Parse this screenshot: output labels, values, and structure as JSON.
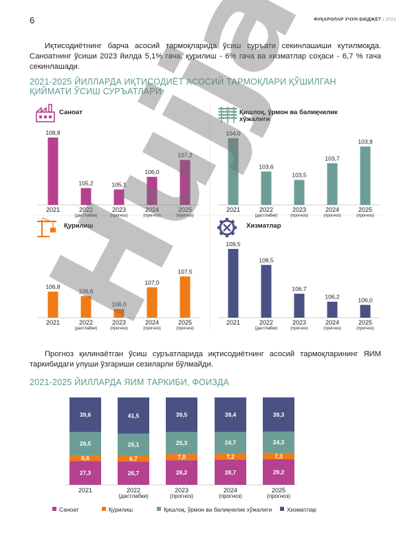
{
  "header": {
    "page_number": "6",
    "title": "ФУҚАРОЛАР УЧУН БЮДЖЕТ",
    "year": "| 2021"
  },
  "paragraph1": "Иқтисодиётнинг барча асосий тармоқларида ўсиш суръати секинлашиши кутилмоқда. Саноатнинг ўсиши 2023 йилда 5,1% гача, қурилиш - 6% гача ва хизматлар соҳаси - 6,7 % гача секинлашади.",
  "section1_title": "2021-2025 ЙИЛЛАРДА ИҚТИСОДИЁТ АСОСИЙ ТАРМОҚЛАРИ ҚЎШИЛГАН ҚИЙМАТИ ЎСИШ СУРЪАТЛАРИ",
  "paragraph2": "Прогноз қилинаётган ўсиш суръатларида иқтисодиётнинг асосий тармоқларининг ЯИМ таркибидаги улуши ўзгариши сезиларли бўлмайди.",
  "section2_title": "2021-2025 ЙИЛЛАРДА ЯИМ ТАРКИБИ, ФОИЗДА",
  "watermark": {
    "text": "Hujjat",
    "accent": "24"
  },
  "colors": {
    "industry": "#b5418f",
    "agriculture": "#6d9e95",
    "construction": "#f07b17",
    "services": "#4a5283",
    "title": "#5a9a8e"
  },
  "chart_data": [
    {
      "type": "bar",
      "title": "Саноат",
      "icon": "factory-icon",
      "categories": [
        "2021",
        "2022",
        "2023",
        "2024",
        "2025"
      ],
      "category_notes": [
        "",
        "(дастлабки)",
        "(прогноз)",
        "(прогноз)",
        "(прогноз)"
      ],
      "values": [
        108.8,
        105.2,
        105.1,
        106.0,
        107.2
      ],
      "labels": [
        "108,8",
        "105,2",
        "105,1",
        "106,0",
        "107,2"
      ],
      "color": "#b5418f"
    },
    {
      "type": "bar",
      "title": "Қишлоқ, ўрмон ва балиқчилик хўжалиги",
      "icon": "wheat-icon",
      "categories": [
        "2021",
        "2022",
        "2023",
        "2024",
        "2025"
      ],
      "category_notes": [
        "",
        "(дастлабки)",
        "(прогноз)",
        "(прогноз)",
        "(прогноз)"
      ],
      "values": [
        104.0,
        103.6,
        103.5,
        103.7,
        103.9
      ],
      "labels": [
        "104,0",
        "103,6",
        "103,5",
        "103,7",
        "103,9"
      ],
      "color": "#6d9e95"
    },
    {
      "type": "bar",
      "title": "Қурилиш",
      "icon": "crane-icon",
      "categories": [
        "2021",
        "2022",
        "2023",
        "2024",
        "2025"
      ],
      "category_notes": [
        "",
        "(дастлабки)",
        "(прогноз)",
        "(прогноз)",
        "(прогноз)"
      ],
      "values": [
        106.8,
        106.6,
        106.0,
        107.0,
        107.5
      ],
      "labels": [
        "106,8",
        "106,6",
        "106,0",
        "107,0",
        "107,5"
      ],
      "color": "#f07b17"
    },
    {
      "type": "bar",
      "title": "Хизматлар",
      "icon": "gear-wrench-icon",
      "categories": [
        "2021",
        "2022",
        "2023",
        "2024",
        "2025"
      ],
      "category_notes": [
        "",
        "(дастлабки)",
        "(прогноз)",
        "(прогноз)",
        "(прогноз)"
      ],
      "values": [
        109.5,
        108.5,
        106.7,
        106.2,
        106.0
      ],
      "labels": [
        "109,5",
        "108,5",
        "106,7",
        "106,2",
        "106,0"
      ],
      "color": "#4a5283"
    },
    {
      "type": "bar",
      "stacked": true,
      "categories": [
        "2021",
        "2022",
        "2023",
        "2024",
        "2025"
      ],
      "category_notes": [
        "",
        "(дастлабки)",
        "(прогноз)",
        "(прогноз)",
        "(прогноз)"
      ],
      "series": [
        {
          "name": "Саноат",
          "values": [
            27.3,
            26.7,
            28.2,
            28.7,
            29.2
          ],
          "labels": [
            "27,3",
            "26,7",
            "28,2",
            "28,7",
            "29,2"
          ],
          "color": "#b5418f"
        },
        {
          "name": "Қурилиш",
          "values": [
            6.6,
            6.7,
            7.0,
            7.2,
            7.3
          ],
          "labels": [
            "6,6",
            "6,7",
            "7,0",
            "7,2",
            "7,3"
          ],
          "color": "#f07b17"
        },
        {
          "name": "Қишлоқ, ўрмон ва балиқчилик хўжалиги",
          "values": [
            26.5,
            25.1,
            25.3,
            24.7,
            24.3
          ],
          "labels": [
            "26,5",
            "25,1",
            "25,3",
            "24,7",
            "24,3"
          ],
          "color": "#6d9e95"
        },
        {
          "name": "Хизматлар",
          "values": [
            39.6,
            41.5,
            39.5,
            39.4,
            39.3
          ],
          "labels": [
            "39,6",
            "41,5",
            "39,5",
            "39,4",
            "39,3"
          ],
          "color": "#4a5283"
        }
      ],
      "legend": "bottom"
    }
  ]
}
